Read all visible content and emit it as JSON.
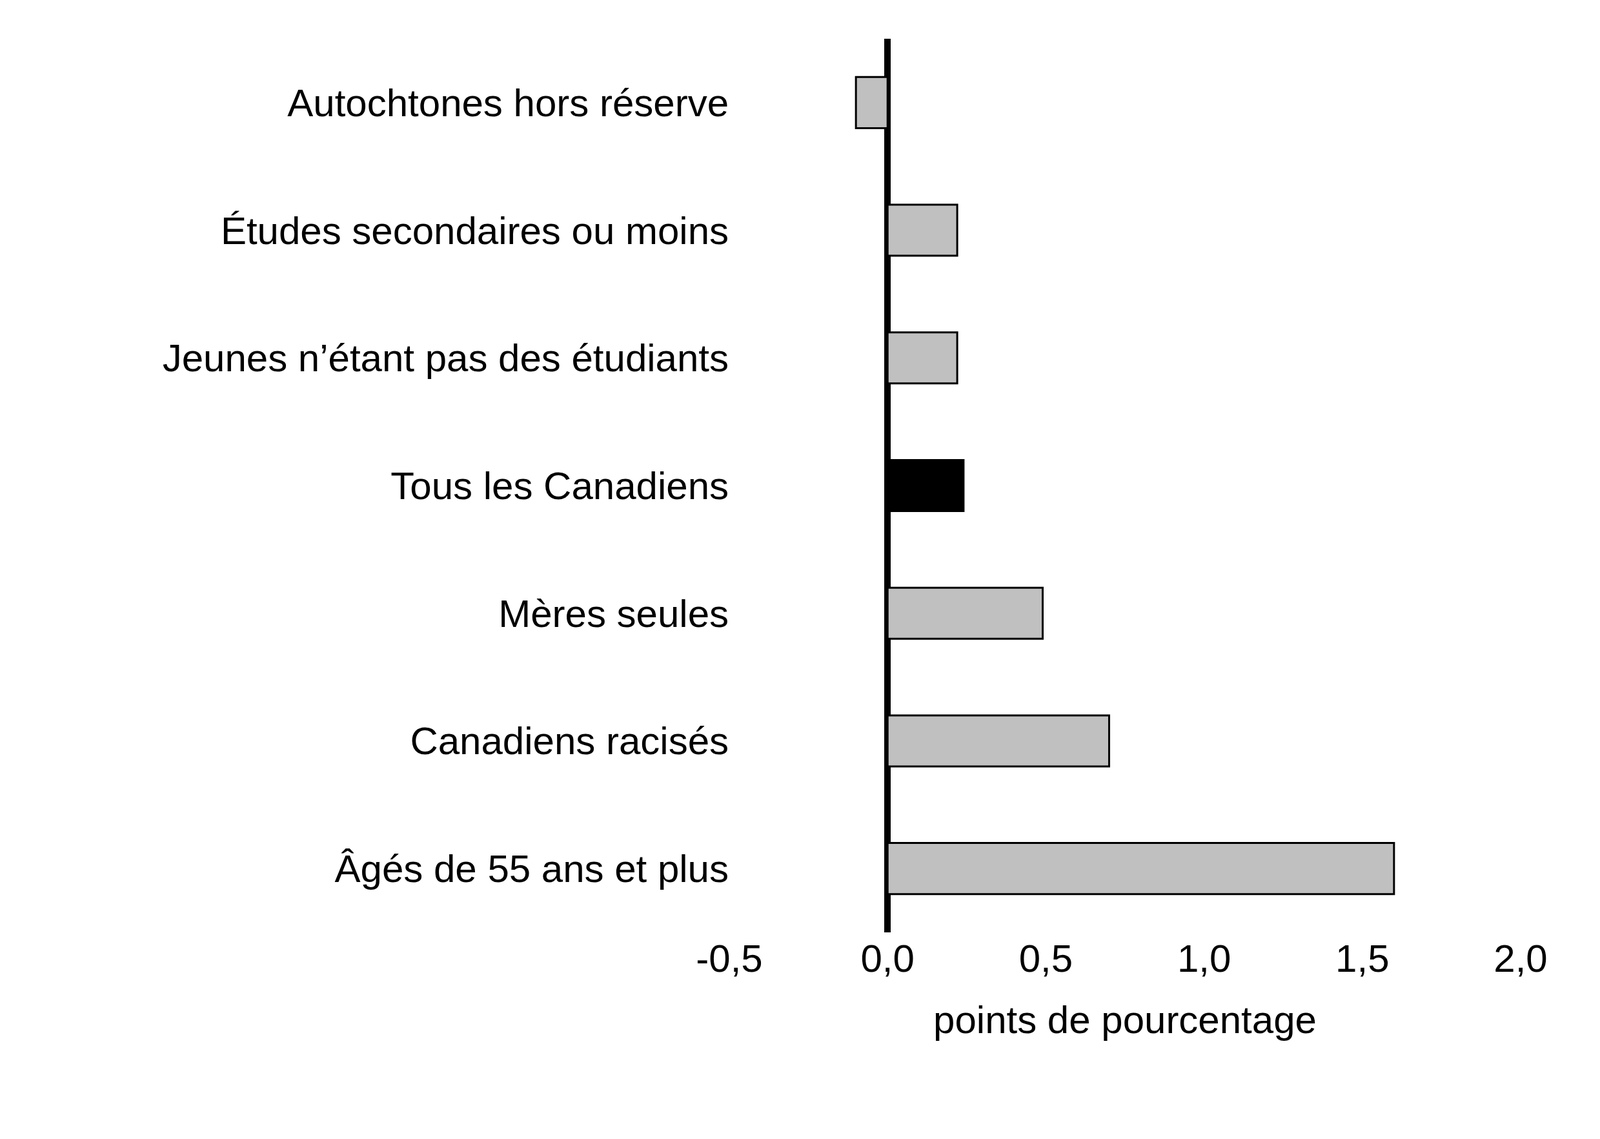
{
  "chart_data": {
    "type": "bar",
    "orientation": "horizontal",
    "categories": [
      "Autochtones hors réserve",
      "Études secondaires ou moins",
      "Jeunes n’étant pas des étudiants",
      "Tous les Canadiens",
      "Mères seules",
      "Canadiens racisés",
      "Âgés de 55 ans et plus"
    ],
    "values": [
      -0.1,
      0.22,
      0.22,
      0.24,
      0.49,
      0.7,
      1.6
    ],
    "colors": [
      "#c0c0c0",
      "#c0c0c0",
      "#c0c0c0",
      "#000000",
      "#c0c0c0",
      "#c0c0c0",
      "#c0c0c0"
    ],
    "x_label": "points de pourcentage",
    "xlim": [
      -0.5,
      2.0
    ],
    "xticks": [
      {
        "value": -0.5,
        "label": "-0,5"
      },
      {
        "value": 0,
        "label": "0,0"
      },
      {
        "value": 0.5,
        "label": "0,5"
      },
      {
        "value": 1,
        "label": "1,0"
      },
      {
        "value": 1.5,
        "label": "1,5"
      },
      {
        "value": 2,
        "label": "2,0"
      }
    ],
    "grid": false
  }
}
